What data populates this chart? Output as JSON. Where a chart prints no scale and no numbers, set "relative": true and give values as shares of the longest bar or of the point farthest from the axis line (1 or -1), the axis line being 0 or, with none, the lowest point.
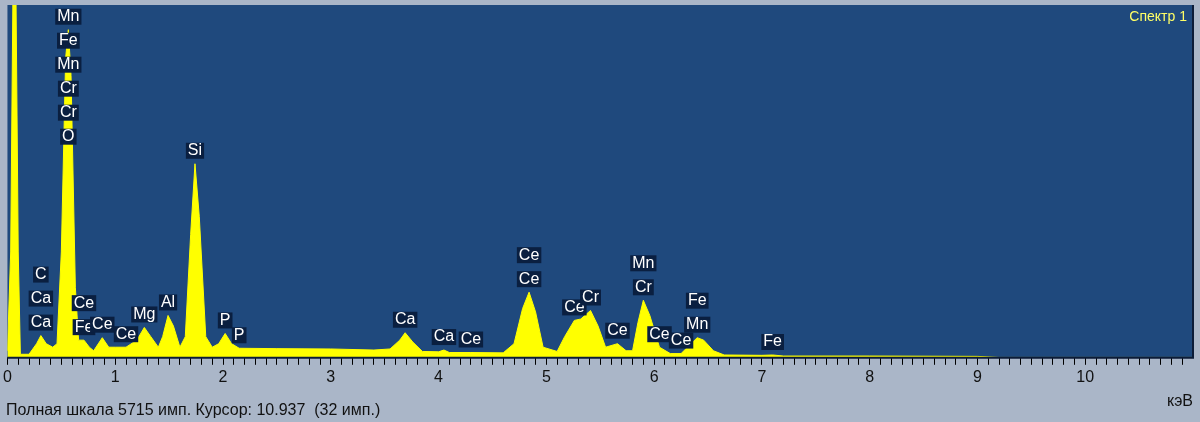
{
  "chart_data": {
    "type": "area",
    "title": "Спектр 1",
    "xlabel": "кэВ",
    "relative": true,
    "marker": "none",
    "grid": false,
    "legend": false,
    "xlim": [
      0,
      11
    ],
    "xticks": [
      0,
      {
        "value": 0.1,
        "label": null
      },
      {
        "value": 0.2,
        "label": null
      },
      {
        "value": 0.3,
        "label": null
      },
      {
        "value": 0.4,
        "label": null
      },
      {
        "value": 0.5,
        "label": null
      },
      {
        "value": 0.6,
        "label": null
      },
      {
        "value": 0.7,
        "label": null
      },
      {
        "value": 0.8,
        "label": null
      },
      {
        "value": 0.9,
        "label": null
      },
      1,
      {
        "value": 1.1,
        "label": null
      },
      {
        "value": 1.2,
        "label": null
      },
      {
        "value": 1.3,
        "label": null
      },
      {
        "value": 1.4,
        "label": null
      },
      {
        "value": 1.5,
        "label": null
      },
      {
        "value": 1.6,
        "label": null
      },
      {
        "value": 1.7,
        "label": null
      },
      {
        "value": 1.8,
        "label": null
      },
      {
        "value": 1.9,
        "label": null
      },
      2,
      {
        "value": 2.1,
        "label": null
      },
      {
        "value": 2.2,
        "label": null
      },
      {
        "value": 2.3,
        "label": null
      },
      {
        "value": 2.4,
        "label": null
      },
      {
        "value": 2.5,
        "label": null
      },
      {
        "value": 2.6,
        "label": null
      },
      {
        "value": 2.7,
        "label": null
      },
      {
        "value": 2.8,
        "label": null
      },
      {
        "value": 2.9,
        "label": null
      },
      3,
      {
        "value": 3.1,
        "label": null
      },
      {
        "value": 3.2,
        "label": null
      },
      {
        "value": 3.3,
        "label": null
      },
      {
        "value": 3.4,
        "label": null
      },
      {
        "value": 3.5,
        "label": null
      },
      {
        "value": 3.6,
        "label": null
      },
      {
        "value": 3.7,
        "label": null
      },
      {
        "value": 3.8,
        "label": null
      },
      {
        "value": 3.9,
        "label": null
      },
      4,
      {
        "value": 4.1,
        "label": null
      },
      {
        "value": 4.2,
        "label": null
      },
      {
        "value": 4.3,
        "label": null
      },
      {
        "value": 4.4,
        "label": null
      },
      {
        "value": 4.5,
        "label": null
      },
      {
        "value": 4.6,
        "label": null
      },
      {
        "value": 4.7,
        "label": null
      },
      {
        "value": 4.8,
        "label": null
      },
      {
        "value": 4.9,
        "label": null
      },
      5,
      {
        "value": 5.1,
        "label": null
      },
      {
        "value": 5.2,
        "label": null
      },
      {
        "value": 5.3,
        "label": null
      },
      {
        "value": 5.4,
        "label": null
      },
      {
        "value": 5.5,
        "label": null
      },
      {
        "value": 5.6,
        "label": null
      },
      {
        "value": 5.7,
        "label": null
      },
      {
        "value": 5.8,
        "label": null
      },
      {
        "value": 5.9,
        "label": null
      },
      6,
      {
        "value": 6.1,
        "label": null
      },
      {
        "value": 6.2,
        "label": null
      },
      {
        "value": 6.3,
        "label": null
      },
      {
        "value": 6.4,
        "label": null
      },
      {
        "value": 6.5,
        "label": null
      },
      {
        "value": 6.6,
        "label": null
      },
      {
        "value": 6.7,
        "label": null
      },
      {
        "value": 6.8,
        "label": null
      },
      {
        "value": 6.9,
        "label": null
      },
      7,
      {
        "value": 7.1,
        "label": null
      },
      {
        "value": 7.2,
        "label": null
      },
      {
        "value": 7.3,
        "label": null
      },
      {
        "value": 7.4,
        "label": null
      },
      {
        "value": 7.5,
        "label": null
      },
      {
        "value": 7.6,
        "label": null
      },
      {
        "value": 7.7,
        "label": null
      },
      {
        "value": 7.8,
        "label": null
      },
      {
        "value": 7.9,
        "label": null
      },
      8,
      {
        "value": 8.1,
        "label": null
      },
      {
        "value": 8.2,
        "label": null
      },
      {
        "value": 8.3,
        "label": null
      },
      {
        "value": 8.4,
        "label": null
      },
      {
        "value": 8.5,
        "label": null
      },
      {
        "value": 8.6,
        "label": null
      },
      {
        "value": 8.7,
        "label": null
      },
      {
        "value": 8.8,
        "label": null
      },
      {
        "value": 8.9,
        "label": null
      },
      9,
      {
        "value": 9.1,
        "label": null
      },
      {
        "value": 9.2,
        "label": null
      },
      {
        "value": 9.3,
        "label": null
      },
      {
        "value": 9.4,
        "label": null
      },
      {
        "value": 9.5,
        "label": null
      },
      {
        "value": 9.6,
        "label": null
      },
      {
        "value": 9.7,
        "label": null
      },
      {
        "value": 9.8,
        "label": null
      },
      {
        "value": 9.9,
        "label": null
      },
      10,
      {
        "value": 10.1,
        "label": null
      },
      {
        "value": 10.2,
        "label": null
      },
      {
        "value": 10.3,
        "label": null
      },
      {
        "value": 10.4,
        "label": null
      },
      {
        "value": 10.5,
        "label": null
      },
      {
        "value": 10.6,
        "label": null
      },
      {
        "value": 10.7,
        "label": null
      },
      {
        "value": 10.8,
        "label": null
      },
      {
        "value": 10.9,
        "label": null
      }
    ],
    "series": [
      {
        "color": "#ffff00",
        "x": [
          0,
          0.03,
          0.05,
          0.08,
          0.1,
          0.12,
          0.2,
          0.27,
          0.31,
          0.36,
          0.42,
          0.46,
          0.5,
          0.54,
          0.565,
          0.59,
          0.63,
          0.66,
          0.71,
          0.76,
          0.8,
          0.88,
          0.94,
          1.0,
          1.1,
          1.2,
          1.27,
          1.33,
          1.4,
          1.44,
          1.49,
          1.54,
          1.6,
          1.65,
          1.7,
          1.74,
          1.78,
          1.84,
          1.9,
          1.96,
          2.02,
          2.08,
          2.15,
          2.5,
          3.0,
          3.4,
          3.55,
          3.64,
          3.69,
          3.76,
          3.85,
          4.0,
          4.05,
          4.1,
          4.3,
          4.6,
          4.7,
          4.78,
          4.84,
          4.9,
          4.97,
          5.1,
          5.17,
          5.26,
          5.32,
          5.41,
          5.48,
          5.55,
          5.66,
          5.74,
          5.8,
          5.85,
          5.9,
          5.96,
          6.05,
          6.15,
          6.25,
          6.4,
          6.46,
          6.55,
          6.65,
          7.0,
          7.1,
          7.2,
          8.0,
          9.0,
          9.2,
          11
        ],
        "values": [
          0.02,
          0.3,
          1,
          1,
          0.3,
          0.01,
          0.01,
          0.04,
          0.063,
          0.04,
          0.03,
          0.04,
          0.3,
          0.85,
          0.93,
          0.8,
          0.2,
          0.05,
          0.05,
          0.03,
          0.02,
          0.057,
          0.03,
          0.03,
          0.03,
          0.05,
          0.086,
          0.06,
          0.03,
          0.06,
          0.12,
          0.09,
          0.03,
          0.06,
          0.35,
          0.55,
          0.4,
          0.06,
          0.03,
          0.04,
          0.069,
          0.04,
          0.027,
          0.026,
          0.025,
          0.022,
          0.025,
          0.05,
          0.071,
          0.045,
          0.018,
          0.017,
          0.022,
          0.015,
          0.015,
          0.014,
          0.04,
          0.14,
          0.186,
          0.13,
          0.03,
          0.018,
          0.06,
          0.106,
          0.11,
          0.134,
          0.09,
          0.03,
          0.04,
          0.02,
          0.02,
          0.1,
          0.163,
          0.12,
          0.03,
          0.012,
          0.012,
          0.057,
          0.05,
          0.02,
          0.008,
          0.007,
          0.008,
          0.005,
          0.005,
          0.004,
          0.001,
          0.001
        ]
      }
    ],
    "annotations": [
      "Полная шкала 5715 имп. Курсор: 10.937  (32 имп.)",
      "O",
      "Cr",
      "Cr",
      "Mn",
      "Fe",
      {
        "text": "Mn",
        "x": 0.565,
        "y": 0.93
      },
      {
        "text": "Ca",
        "x": 0.31,
        "y": 0.063
      },
      "Ca",
      "C",
      {
        "text": "Fe",
        "x": 0.71,
        "y": 0.05
      },
      "Ce",
      {
        "text": "Ce",
        "x": 0.88,
        "y": 0.057
      },
      {
        "text": "Ce",
        "x": 1.1,
        "y": 0.03
      },
      {
        "text": "Mg",
        "x": 1.27,
        "y": 0.086
      },
      {
        "text": "Al",
        "x": 1.49,
        "y": 0.12
      },
      {
        "text": "Si",
        "x": 1.74,
        "y": 0.55
      },
      {
        "text": "P",
        "x": 2.02,
        "y": 0.069
      },
      {
        "text": "P",
        "x": 2.15,
        "y": 0.027
      },
      {
        "text": "Ca",
        "x": 3.69,
        "y": 0.071
      },
      {
        "text": "Ca",
        "x": 4.05,
        "y": 0.022
      },
      {
        "text": "Ce",
        "x": 4.3,
        "y": 0.015
      },
      {
        "text": "Ce",
        "x": 4.84,
        "y": 0.186
      },
      "Ce",
      {
        "text": "Ce",
        "x": 5.26,
        "y": 0.106
      },
      {
        "text": "Cr",
        "x": 5.41,
        "y": 0.134
      },
      {
        "text": "Ce",
        "x": 5.66,
        "y": 0.04
      },
      {
        "text": "Cr",
        "x": 5.9,
        "y": 0.163
      },
      "Mn",
      {
        "text": "Ce",
        "x": 6.05,
        "y": 0.03
      },
      {
        "text": "Ce",
        "x": 6.25,
        "y": 0.012
      },
      {
        "text": "Mn",
        "x": 6.4,
        "y": 0.057
      },
      "Fe",
      {
        "text": "Fe",
        "x": 7.1,
        "y": 0.008
      }
    ]
  }
}
